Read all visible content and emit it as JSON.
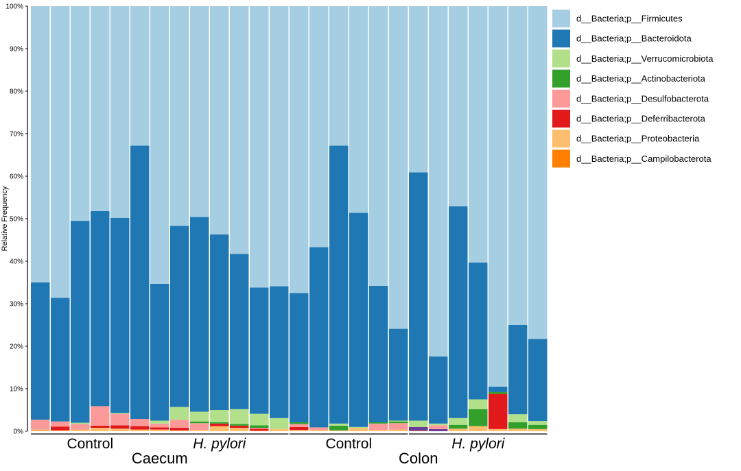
{
  "chart_data": {
    "type": "bar",
    "stacked": true,
    "ylabel": "Relative Frequency",
    "ylim": [
      0,
      100
    ],
    "yticks": [
      0,
      10,
      20,
      30,
      40,
      50,
      60,
      70,
      80,
      90,
      100
    ],
    "ytick_suffix": "%",
    "legend_position": "right",
    "series": [
      {
        "name": "d__Bacteria;p__Firmicutes",
        "color": "#a6cee3"
      },
      {
        "name": "d__Bacteria;p__Bacteroidota",
        "color": "#1f78b4"
      },
      {
        "name": "d__Bacteria;p__Verrucomicrobiota",
        "color": "#b2df8a"
      },
      {
        "name": "d__Bacteria;p__Actinobacteriota",
        "color": "#33a02c"
      },
      {
        "name": "d__Bacteria;p__Desulfobacterota",
        "color": "#fb9a99"
      },
      {
        "name": "d__Bacteria;p__Deferribacterota",
        "color": "#e31a1c"
      },
      {
        "name": "d__Bacteria;p__Proteobacteria",
        "color": "#fdbf6f"
      },
      {
        "name": "d__Bacteria;p__Campilobacterota",
        "color": "#ff7f00"
      }
    ],
    "unlisted_colors": {
      "purple": "#6a3d9a"
    },
    "bars": [
      {
        "id": "C-Ctrl-1",
        "segments": [
          {
            "s": "Campilobacterota",
            "v": 0.1
          },
          {
            "s": "Proteobacteria",
            "v": 0.3
          },
          {
            "s": "Desulfobacterota",
            "v": 2.3
          },
          {
            "s": "Bacteroidota",
            "v": 32.3
          },
          {
            "s": "Firmicutes",
            "v": 65.0
          }
        ]
      },
      {
        "id": "C-Ctrl-2",
        "segments": [
          {
            "s": "Proteobacteria",
            "v": 0.2
          },
          {
            "s": "Deferribacterota",
            "v": 0.9
          },
          {
            "s": "Desulfobacterota",
            "v": 1.2
          },
          {
            "s": "Bacteroidota",
            "v": 29.1
          },
          {
            "s": "Firmicutes",
            "v": 68.6
          }
        ]
      },
      {
        "id": "C-Ctrl-3",
        "segments": [
          {
            "s": "Proteobacteria",
            "v": 0.4
          },
          {
            "s": "Desulfobacterota",
            "v": 1.3
          },
          {
            "s": "Verrucomicrobiota",
            "v": 0.3
          },
          {
            "s": "Bacteroidota",
            "v": 47.5
          },
          {
            "s": "Firmicutes",
            "v": 50.5
          }
        ]
      },
      {
        "id": "C-Ctrl-4",
        "segments": [
          {
            "s": "Proteobacteria",
            "v": 0.8
          },
          {
            "s": "Deferribacterota",
            "v": 0.5
          },
          {
            "s": "Desulfobacterota",
            "v": 4.6
          },
          {
            "s": "Bacteroidota",
            "v": 45.9
          },
          {
            "s": "Firmicutes",
            "v": 48.2
          }
        ]
      },
      {
        "id": "C-Ctrl-5",
        "segments": [
          {
            "s": "Proteobacteria",
            "v": 0.6
          },
          {
            "s": "Deferribacterota",
            "v": 0.8
          },
          {
            "s": "Desulfobacterota",
            "v": 2.7
          },
          {
            "s": "Verrucomicrobiota",
            "v": 0.2
          },
          {
            "s": "Bacteroidota",
            "v": 45.9
          },
          {
            "s": "Firmicutes",
            "v": 49.8
          }
        ]
      },
      {
        "id": "C-Ctrl-6",
        "segments": [
          {
            "s": "Proteobacteria",
            "v": 0.4
          },
          {
            "s": "Deferribacterota",
            "v": 0.8
          },
          {
            "s": "Desulfobacterota",
            "v": 1.7
          },
          {
            "s": "Bacteroidota",
            "v": 64.3
          },
          {
            "s": "Firmicutes",
            "v": 32.8
          }
        ]
      },
      {
        "id": "C-Hp-1",
        "segments": [
          {
            "s": "Proteobacteria",
            "v": 0.4
          },
          {
            "s": "Deferribacterota",
            "v": 0.5
          },
          {
            "s": "Desulfobacterota",
            "v": 0.9
          },
          {
            "s": "Verrucomicrobiota",
            "v": 0.7
          },
          {
            "s": "Bacteroidota",
            "v": 32.2
          },
          {
            "s": "Firmicutes",
            "v": 65.3
          }
        ]
      },
      {
        "id": "C-Hp-2",
        "segments": [
          {
            "s": "Proteobacteria",
            "v": 0.2
          },
          {
            "s": "Deferribacterota",
            "v": 0.6
          },
          {
            "s": "Desulfobacterota",
            "v": 1.9
          },
          {
            "s": "Verrucomicrobiota",
            "v": 3.0
          },
          {
            "s": "Bacteroidota",
            "v": 42.6
          },
          {
            "s": "Firmicutes",
            "v": 51.7
          }
        ]
      },
      {
        "id": "C-Hp-3",
        "segments": [
          {
            "s": "Proteobacteria",
            "v": 0.3
          },
          {
            "s": "Desulfobacterota",
            "v": 1.6
          },
          {
            "s": "Actinobacteriota",
            "v": 0.4
          },
          {
            "s": "Verrucomicrobiota",
            "v": 2.3
          },
          {
            "s": "Bacteroidota",
            "v": 45.8
          },
          {
            "s": "Firmicutes",
            "v": 49.6
          }
        ]
      },
      {
        "id": "C-Hp-4",
        "segments": [
          {
            "s": "Proteobacteria",
            "v": 1.2
          },
          {
            "s": "Deferribacterota",
            "v": 0.6
          },
          {
            "s": "Actinobacteriota",
            "v": 0.3
          },
          {
            "s": "Verrucomicrobiota",
            "v": 2.9
          },
          {
            "s": "Bacteroidota",
            "v": 41.3
          },
          {
            "s": "Firmicutes",
            "v": 53.7
          }
        ]
      },
      {
        "id": "C-Hp-5",
        "segments": [
          {
            "s": "Proteobacteria",
            "v": 0.8
          },
          {
            "s": "Deferribacterota",
            "v": 0.5
          },
          {
            "s": "Actinobacteriota",
            "v": 0.4
          },
          {
            "s": "Verrucomicrobiota",
            "v": 3.5
          },
          {
            "s": "Bacteroidota",
            "v": 36.5
          },
          {
            "s": "Firmicutes",
            "v": 58.3
          }
        ]
      },
      {
        "id": "C-Hp-6",
        "segments": [
          {
            "s": "Proteobacteria",
            "v": 0.1
          },
          {
            "s": "Deferribacterota",
            "v": 0.5
          },
          {
            "s": "Desulfobacterota",
            "v": 0.2
          },
          {
            "s": "Actinobacteriota",
            "v": 0.6
          },
          {
            "s": "Verrucomicrobiota",
            "v": 2.7
          },
          {
            "s": "Bacteroidota",
            "v": 29.7
          },
          {
            "s": "Firmicutes",
            "v": 66.2
          }
        ]
      },
      {
        "id": "C-Hp-7",
        "segments": [
          {
            "s": "Proteobacteria",
            "v": 0.5
          },
          {
            "s": "Verrucomicrobiota",
            "v": 2.6
          },
          {
            "s": "Bacteroidota",
            "v": 31.0
          },
          {
            "s": "Firmicutes",
            "v": 65.9
          }
        ]
      },
      {
        "id": "Co-Ctrl-1",
        "segments": [
          {
            "s": "Proteobacteria",
            "v": 0.3
          },
          {
            "s": "Deferribacterota",
            "v": 0.7
          },
          {
            "s": "Desulfobacterota",
            "v": 0.7
          },
          {
            "s": "Actinobacteriota",
            "v": 0.4
          },
          {
            "s": "Bacteroidota",
            "v": 30.4
          },
          {
            "s": "Firmicutes",
            "v": 67.5
          }
        ]
      },
      {
        "id": "Co-Ctrl-2",
        "segments": [
          {
            "s": "Proteobacteria",
            "v": 0.3
          },
          {
            "s": "Desulfobacterota",
            "v": 0.6
          },
          {
            "s": "Bacteroidota",
            "v": 42.4
          },
          {
            "s": "Firmicutes",
            "v": 56.7
          }
        ]
      },
      {
        "id": "Co-Ctrl-3",
        "segments": [
          {
            "s": "Proteobacteria",
            "v": 0.2
          },
          {
            "s": "Actinobacteriota",
            "v": 1.1
          },
          {
            "s": "Verrucomicrobiota",
            "v": 0.5
          },
          {
            "s": "Bacteroidota",
            "v": 65.4
          },
          {
            "s": "Firmicutes",
            "v": 32.8
          }
        ]
      },
      {
        "id": "Co-Ctrl-4",
        "segments": [
          {
            "s": "Proteobacteria",
            "v": 0.8
          },
          {
            "s": "Verrucomicrobiota",
            "v": 0.2
          },
          {
            "s": "Bacteroidota",
            "v": 50.4
          },
          {
            "s": "Firmicutes",
            "v": 48.6
          }
        ]
      },
      {
        "id": "Co-Ctrl-5",
        "segments": [
          {
            "s": "Proteobacteria",
            "v": 0.3
          },
          {
            "s": "Desulfobacterota",
            "v": 1.5
          },
          {
            "s": "Actinobacteriota",
            "v": 0.3
          },
          {
            "s": "Bacteroidota",
            "v": 32.1
          },
          {
            "s": "Firmicutes",
            "v": 65.8
          }
        ]
      },
      {
        "id": "Co-Ctrl-6",
        "segments": [
          {
            "s": "Proteobacteria",
            "v": 0.4
          },
          {
            "s": "Desulfobacterota",
            "v": 1.5
          },
          {
            "s": "Actinobacteriota",
            "v": 0.4
          },
          {
            "s": "Verrucomicrobiota",
            "v": 0.2
          },
          {
            "s": "Bacteroidota",
            "v": 21.6
          },
          {
            "s": "Firmicutes",
            "v": 75.9
          }
        ]
      },
      {
        "id": "Co-Hp-1",
        "segments": [
          {
            "s": "Campilobacterota",
            "v": 0.1
          },
          {
            "s": "purple",
            "v": 0.9
          },
          {
            "s": "Verrucomicrobiota",
            "v": 1.5
          },
          {
            "s": "Bacteroidota",
            "v": 58.4
          },
          {
            "s": "Firmicutes",
            "v": 39.1
          }
        ]
      },
      {
        "id": "Co-Hp-2",
        "segments": [
          {
            "s": "purple",
            "v": 0.5
          },
          {
            "s": "Desulfobacterota",
            "v": 0.9
          },
          {
            "s": "Verrucomicrobiota",
            "v": 0.4
          },
          {
            "s": "Bacteroidota",
            "v": 15.8
          },
          {
            "s": "Firmicutes",
            "v": 82.4
          }
        ]
      },
      {
        "id": "Co-Hp-3",
        "segments": [
          {
            "s": "Proteobacteria",
            "v": 0.6
          },
          {
            "s": "Actinobacteriota",
            "v": 0.9
          },
          {
            "s": "Verrucomicrobiota",
            "v": 1.6
          },
          {
            "s": "Bacteroidota",
            "v": 49.8
          },
          {
            "s": "Firmicutes",
            "v": 47.1
          }
        ]
      },
      {
        "id": "Co-Hp-4",
        "segments": [
          {
            "s": "Proteobacteria",
            "v": 1.2
          },
          {
            "s": "Actinobacteriota",
            "v": 4.0
          },
          {
            "s": "Verrucomicrobiota",
            "v": 2.3
          },
          {
            "s": "Bacteroidota",
            "v": 32.2
          },
          {
            "s": "Firmicutes",
            "v": 60.3
          }
        ]
      },
      {
        "id": "Co-Hp-5",
        "segments": [
          {
            "s": "Proteobacteria",
            "v": 0.5
          },
          {
            "s": "Deferribacterota",
            "v": 8.3
          },
          {
            "s": "Actinobacteriota",
            "v": 0.4
          },
          {
            "s": "Bacteroidota",
            "v": 1.3
          },
          {
            "s": "Firmicutes",
            "v": 89.5
          }
        ]
      },
      {
        "id": "Co-Hp-6",
        "segments": [
          {
            "s": "Proteobacteria",
            "v": 0.6
          },
          {
            "s": "Actinobacteriota",
            "v": 1.5
          },
          {
            "s": "Verrucomicrobiota",
            "v": 1.9
          },
          {
            "s": "Bacteroidota",
            "v": 21.0
          },
          {
            "s": "Firmicutes",
            "v": 75.0
          }
        ]
      },
      {
        "id": "Co-Hp-7",
        "segments": [
          {
            "s": "Proteobacteria",
            "v": 0.5
          },
          {
            "s": "Actinobacteriota",
            "v": 1.0
          },
          {
            "s": "Verrucomicrobiota",
            "v": 0.9
          },
          {
            "s": "Bacteroidota",
            "v": 19.3
          },
          {
            "s": "Firmicutes",
            "v": 78.3
          }
        ]
      }
    ],
    "groups": [
      {
        "label": "Control",
        "italic": false,
        "start": 0,
        "end": 5
      },
      {
        "label": "H. pylori",
        "italic": true,
        "start": 6,
        "end": 12
      },
      {
        "label": "Control",
        "italic": false,
        "start": 13,
        "end": 18
      },
      {
        "label": "H. pylori",
        "italic": true,
        "start": 19,
        "end": 25
      }
    ],
    "regions": [
      {
        "label": "Caecum",
        "start": 0,
        "end": 12
      },
      {
        "label": "Colon",
        "start": 13,
        "end": 25
      }
    ]
  }
}
